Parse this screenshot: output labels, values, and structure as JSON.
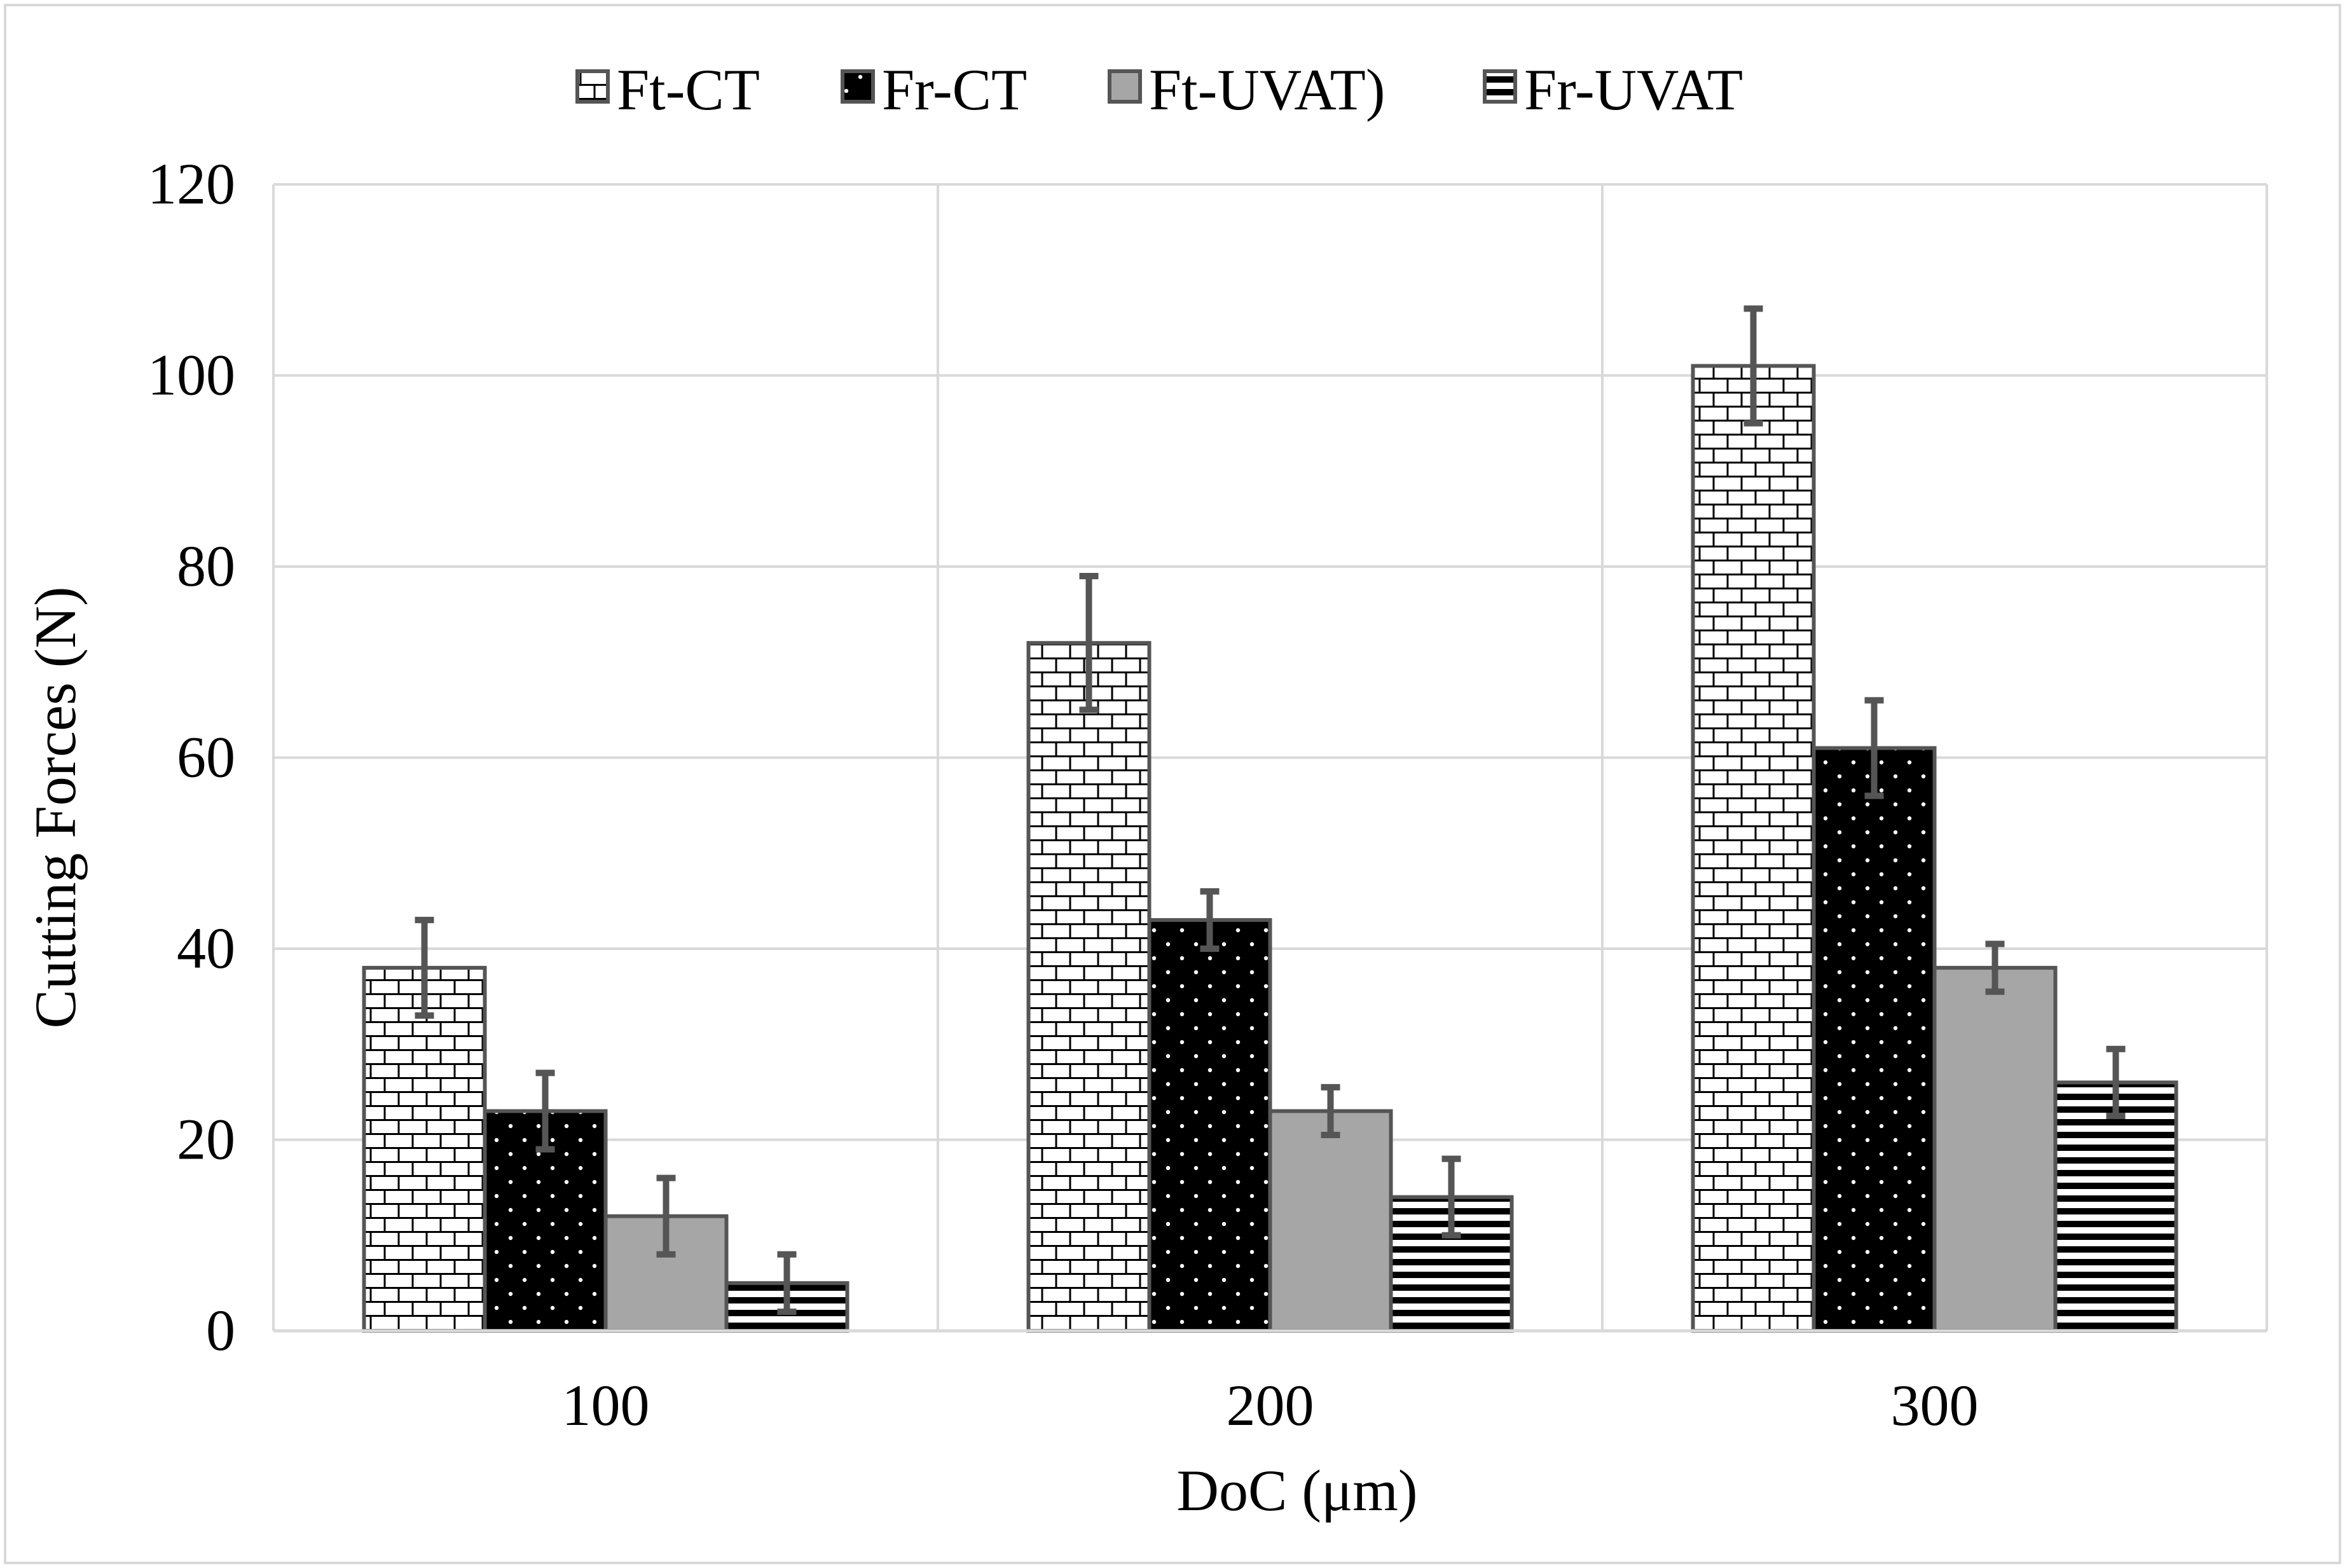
{
  "chart_data": {
    "type": "bar",
    "title": "",
    "xlabel": "DoC (μm)",
    "ylabel": "Cutting Forces (N)",
    "categories": [
      "100",
      "200",
      "300"
    ],
    "ylim": [
      0,
      120
    ],
    "yticks": [
      0,
      20,
      40,
      60,
      80,
      100,
      120
    ],
    "grid": true,
    "legend_position": "top",
    "series": [
      {
        "name": "Ft-CT",
        "pattern": "brick",
        "values": [
          38,
          72,
          101
        ],
        "errors": [
          5,
          7,
          6
        ]
      },
      {
        "name": "Fr-CT",
        "pattern": "dots",
        "values": [
          23,
          43,
          61
        ],
        "errors": [
          4,
          3,
          5
        ]
      },
      {
        "name": "Ft-UVAT)",
        "pattern": "solid-gray",
        "values": [
          12,
          23,
          38
        ],
        "errors": [
          4,
          2.5,
          2.5
        ]
      },
      {
        "name": "Fr-UVAT",
        "pattern": "horizontal-stripes",
        "values": [
          5,
          14,
          26
        ],
        "errors": [
          3,
          4,
          3.5
        ]
      }
    ],
    "colors": {
      "bar_outline": "#555555",
      "error_bar": "#555555",
      "gray_fill": "#a6a6a6",
      "grid": "#d9d9d9"
    }
  }
}
